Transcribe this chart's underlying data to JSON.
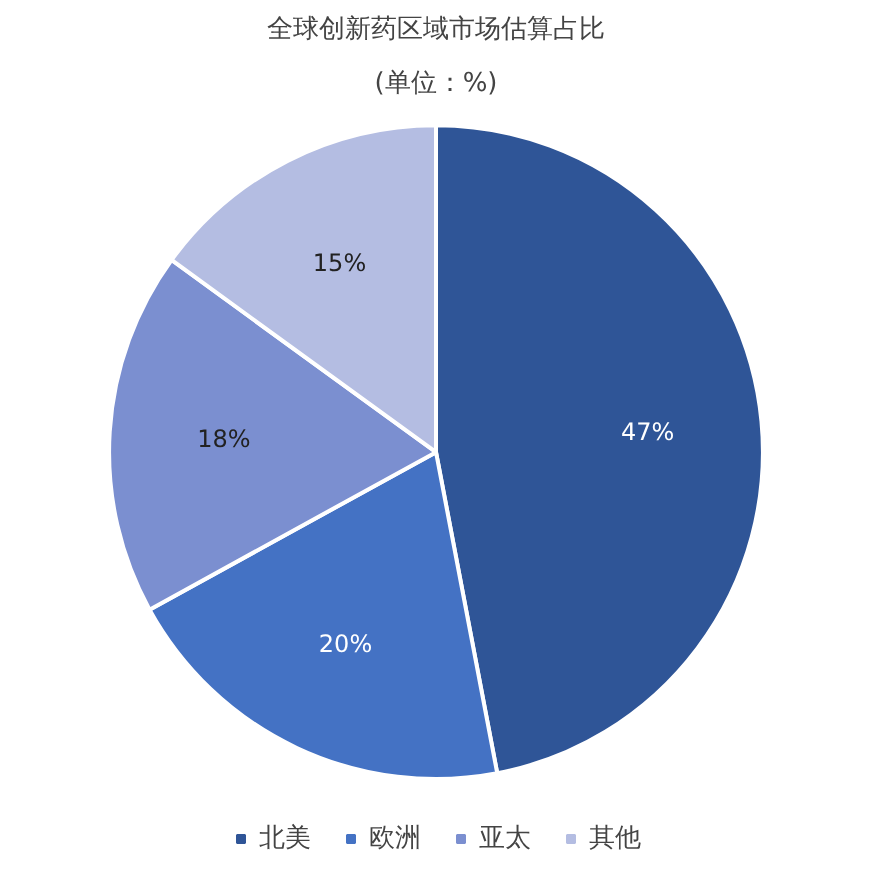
{
  "chart_data": {
    "type": "pie",
    "title": "全球创新药区域市场估算占比",
    "subtitle": "(单位：%)",
    "categories": [
      "北美",
      "欧洲",
      "亚太",
      "其他"
    ],
    "values": [
      47,
      20,
      18,
      15
    ],
    "colors": [
      "#2f5597",
      "#4472c4",
      "#7b8fd0",
      "#b4bde2"
    ],
    "value_labels": [
      "47%",
      "20%",
      "18%",
      "15%"
    ],
    "legend": "bottom"
  }
}
